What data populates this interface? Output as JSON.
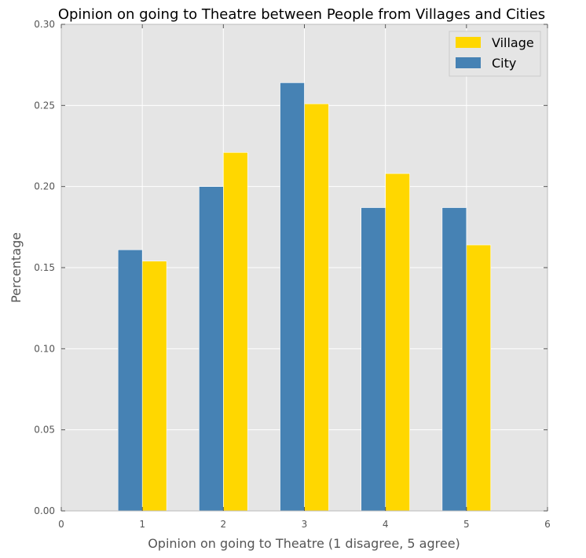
{
  "chart_data": {
    "type": "bar",
    "title": "Opinion on going to Theatre between People from Villages and Cities",
    "xlabel": "Opinion on going to Theatre (1 disagree, 5 agree)",
    "ylabel": "Percentage",
    "xlim": [
      0,
      6
    ],
    "ylim": [
      0,
      0.3
    ],
    "xticks": [
      "0",
      "1",
      "2",
      "3",
      "4",
      "5",
      "6"
    ],
    "yticks": [
      "0.00",
      "0.05",
      "0.10",
      "0.15",
      "0.20",
      "0.25",
      "0.30"
    ],
    "categories": [
      1,
      2,
      3,
      4,
      5
    ],
    "grid": true,
    "legend_position": "top-right",
    "series": [
      {
        "name": "Village",
        "color": "#FFD700",
        "values": [
          0.154,
          0.221,
          0.251,
          0.208,
          0.164
        ]
      },
      {
        "name": "City",
        "color": "#4682B4",
        "values": [
          0.161,
          0.2,
          0.264,
          0.187,
          0.187
        ]
      }
    ]
  }
}
